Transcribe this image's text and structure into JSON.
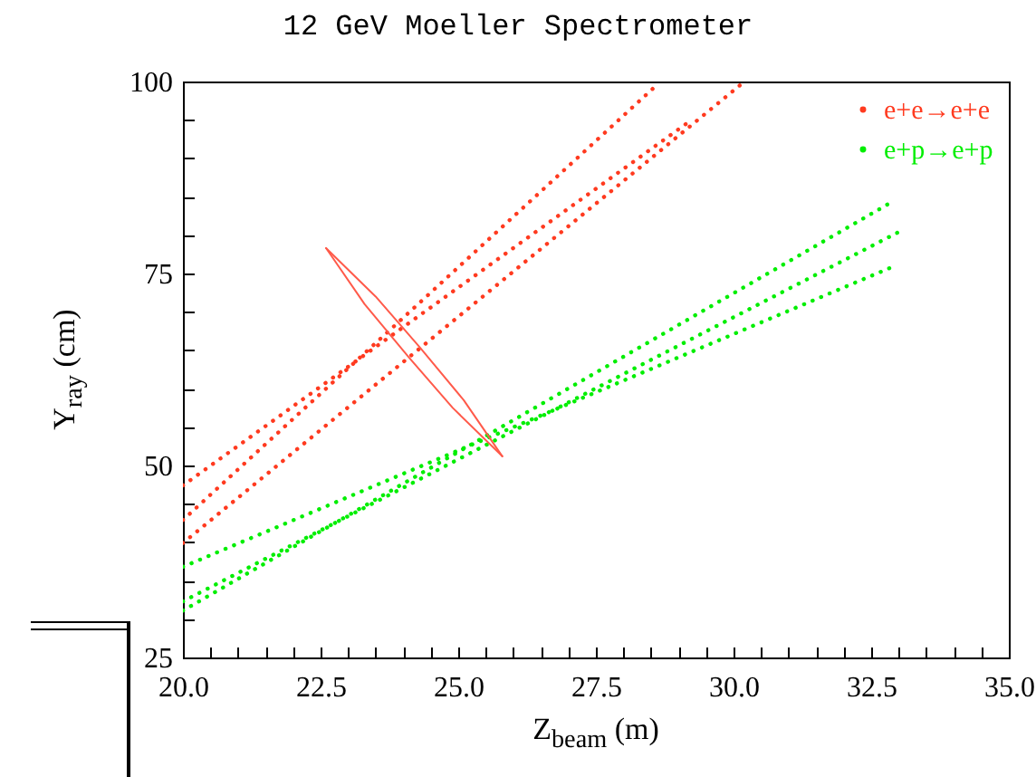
{
  "chart_data": {
    "type": "line",
    "title": "12 GeV Moeller Spectrometer",
    "xlabel": "Z$_{beam}$ (m)",
    "ylabel": "Y$_{ray}$ (cm)",
    "xlim": [
      20,
      35
    ],
    "ylim": [
      25,
      100
    ],
    "xticks": [
      {
        "value": 20,
        "label": "20.0"
      },
      {
        "value": 20.5,
        "label": null
      },
      {
        "value": 21,
        "label": null
      },
      {
        "value": 21.5,
        "label": null
      },
      {
        "value": 22,
        "label": null
      },
      {
        "value": 22.5,
        "label": "22.5"
      },
      {
        "value": 23,
        "label": null
      },
      {
        "value": 23.5,
        "label": null
      },
      {
        "value": 24,
        "label": null
      },
      {
        "value": 24.5,
        "label": null
      },
      {
        "value": 25,
        "label": "25.0"
      },
      {
        "value": 25.5,
        "label": null
      },
      {
        "value": 26,
        "label": null
      },
      {
        "value": 26.5,
        "label": null
      },
      {
        "value": 27,
        "label": null
      },
      {
        "value": 27.5,
        "label": "27.5"
      },
      {
        "value": 28,
        "label": null
      },
      {
        "value": 28.5,
        "label": null
      },
      {
        "value": 29,
        "label": null
      },
      {
        "value": 29.5,
        "label": null
      },
      {
        "value": 30,
        "label": "30.0"
      },
      {
        "value": 30.5,
        "label": null
      },
      {
        "value": 31,
        "label": null
      },
      {
        "value": 31.5,
        "label": null
      },
      {
        "value": 32,
        "label": null
      },
      {
        "value": 32.5,
        "label": "32.5"
      },
      {
        "value": 33,
        "label": null
      },
      {
        "value": 33.5,
        "label": null
      },
      {
        "value": 34,
        "label": null
      },
      {
        "value": 34.5,
        "label": null
      },
      {
        "value": 35,
        "label": "35.0"
      }
    ],
    "yticks": [
      25,
      {
        "value": 30,
        "label": null
      },
      {
        "value": 35,
        "label": null
      },
      {
        "value": 40,
        "label": null
      },
      {
        "value": 45,
        "label": null
      },
      50,
      {
        "value": 55,
        "label": null
      },
      {
        "value": 60,
        "label": null
      },
      {
        "value": 65,
        "label": null
      },
      {
        "value": 70,
        "label": null
      },
      75,
      {
        "value": 80,
        "label": null
      },
      {
        "value": 85,
        "label": null
      },
      {
        "value": 90,
        "label": null
      },
      {
        "value": 95,
        "label": null
      },
      100
    ],
    "grid": false,
    "legend": "top right",
    "marker": "none",
    "line_style": "dotted",
    "series": [
      {
        "name": "e+e→e+e",
        "color": "#ff3a1f",
        "x": [
          20,
          29.2
        ],
        "values": [
          47.4,
          94.8
        ]
      },
      {
        "color": "#ff3a1f",
        "x": [
          20,
          28.6
        ],
        "values": [
          42.9,
          99.5
        ]
      },
      {
        "color": "#ff3a1f",
        "x": [
          20,
          30.2
        ],
        "values": [
          39.9,
          100
        ]
      },
      {
        "name": "e+p→e+p",
        "color": "#00ee00",
        "x": [
          20,
          32.9
        ],
        "values": [
          36.8,
          75.9
        ]
      },
      {
        "color": "#00ee00",
        "x": [
          20,
          33.0
        ],
        "values": [
          32.3,
          80.4
        ]
      },
      {
        "color": "#00ee00",
        "x": [
          20,
          32.8
        ],
        "values": [
          31.1,
          84.0
        ]
      },
      {
        "color": "#ff5a4a",
        "line_style": "solid",
        "x": [
          22.6,
          23.5,
          24.3,
          25.1,
          25.8
        ],
        "values": [
          78.3,
          72.0,
          65.4,
          58.5,
          51.2
        ]
      },
      {
        "color": "#ff5a4a",
        "line_style": "solid",
        "x": [
          22.6,
          23.3,
          24.1,
          24.9,
          25.8
        ],
        "values": [
          78.3,
          71.0,
          64.1,
          57.5,
          51.2
        ]
      }
    ]
  }
}
